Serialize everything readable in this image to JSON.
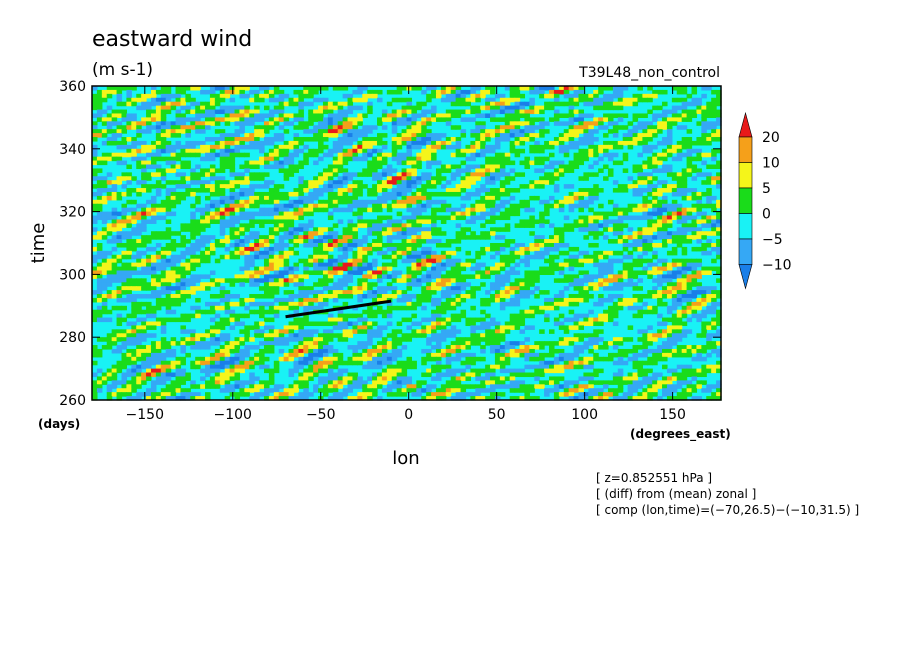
{
  "chart_data": {
    "type": "heatmap",
    "title": "eastward wind",
    "units": "(m s-1)",
    "run_name": "T39L48_non_control",
    "xlabel": "lon",
    "ylabel": "time",
    "x_units": "(degrees_east)",
    "y_units": "(days)",
    "xlim": [
      -180,
      177.5
    ],
    "ylim": [
      260,
      360
    ],
    "x_ticks": [
      -150,
      -100,
      -50,
      0,
      50,
      100,
      150
    ],
    "y_ticks": [
      260,
      280,
      300,
      320,
      340,
      360
    ],
    "x_tick_labels": [
      "−150",
      "−100",
      "−50",
      "0",
      "50",
      "100",
      "150"
    ],
    "y_tick_labels": [
      "260",
      "280",
      "300",
      "320",
      "340",
      "360"
    ],
    "colorbar": {
      "levels": [
        -10,
        -5,
        0,
        5,
        10,
        20
      ],
      "labels": [
        "−10",
        "−5",
        "0",
        "5",
        "10",
        "20"
      ],
      "colors": [
        "#1a7fe8",
        "#35a8f5",
        "#19f2f5",
        "#1adc1a",
        "#f5f51a",
        "#f5a01a",
        "#e81a1a"
      ]
    },
    "composite_line": {
      "x": [
        -70,
        -10
      ],
      "y": [
        286.5,
        291.5
      ]
    },
    "notes": [
      "[ z=0.852551 hPa ]",
      "[ (diff) from (mean) zonal ]",
      "[ comp (lon,time)=(−70,26.5)−(−10,31.5) ]"
    ]
  }
}
